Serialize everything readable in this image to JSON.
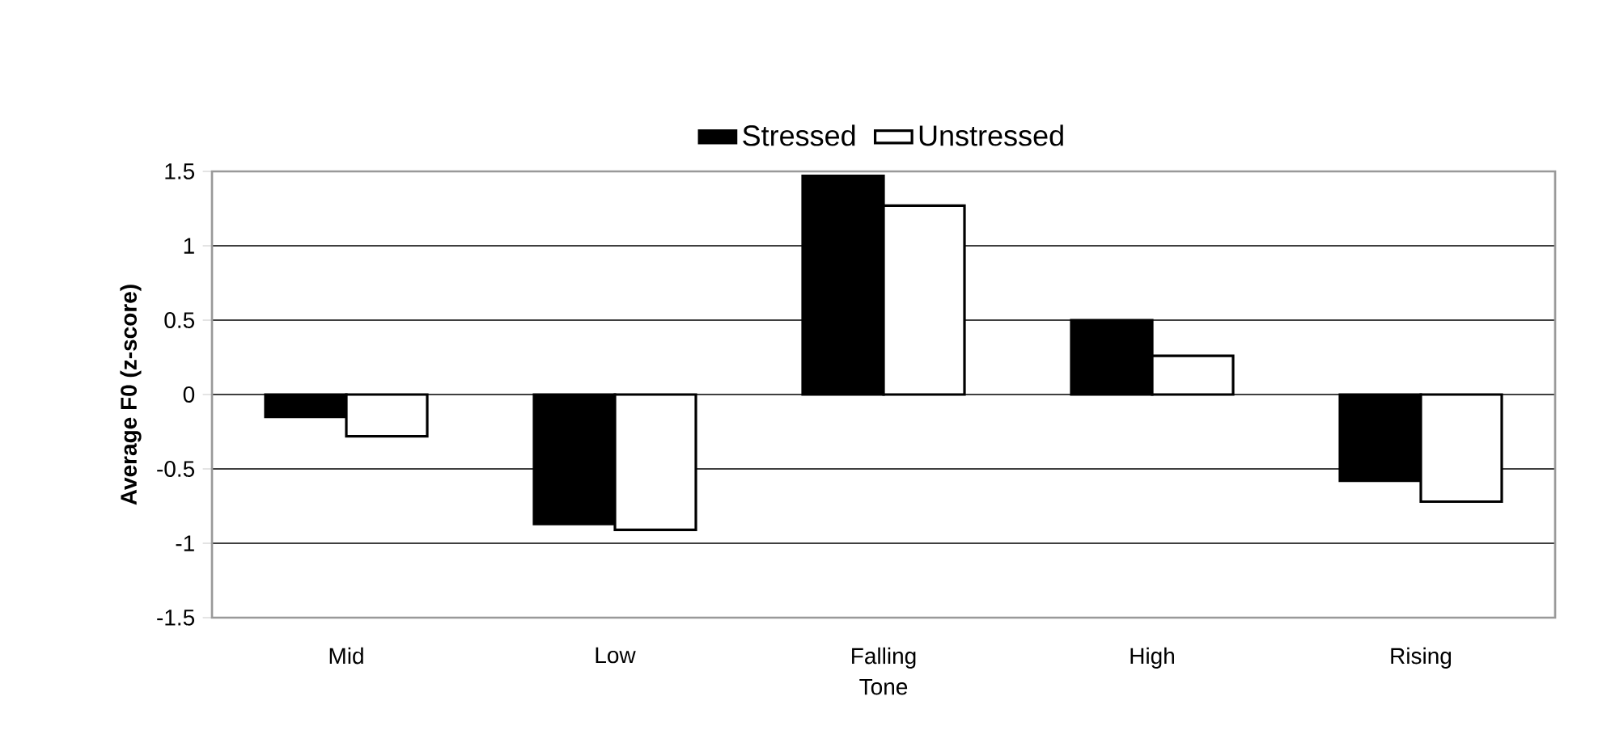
{
  "chart_data": {
    "type": "bar",
    "xlabel": "Tone",
    "ylabel": "Average F0 (z-score)",
    "categories": [
      "Mid",
      "Low",
      "Falling",
      "High",
      "Rising"
    ],
    "series": [
      {
        "name": "Stressed",
        "color": "#000000",
        "values": [
          -0.15,
          -0.87,
          1.47,
          0.5,
          -0.58
        ]
      },
      {
        "name": "Unstressed",
        "color": "#ffffff",
        "values": [
          -0.28,
          -0.91,
          1.27,
          0.26,
          -0.72
        ]
      }
    ],
    "ylim": [
      -1.5,
      1.5
    ],
    "yticks": [
      -1.5,
      -1,
      -0.5,
      0,
      0.5,
      1,
      1.5
    ],
    "grid": "y",
    "legend": "top"
  }
}
